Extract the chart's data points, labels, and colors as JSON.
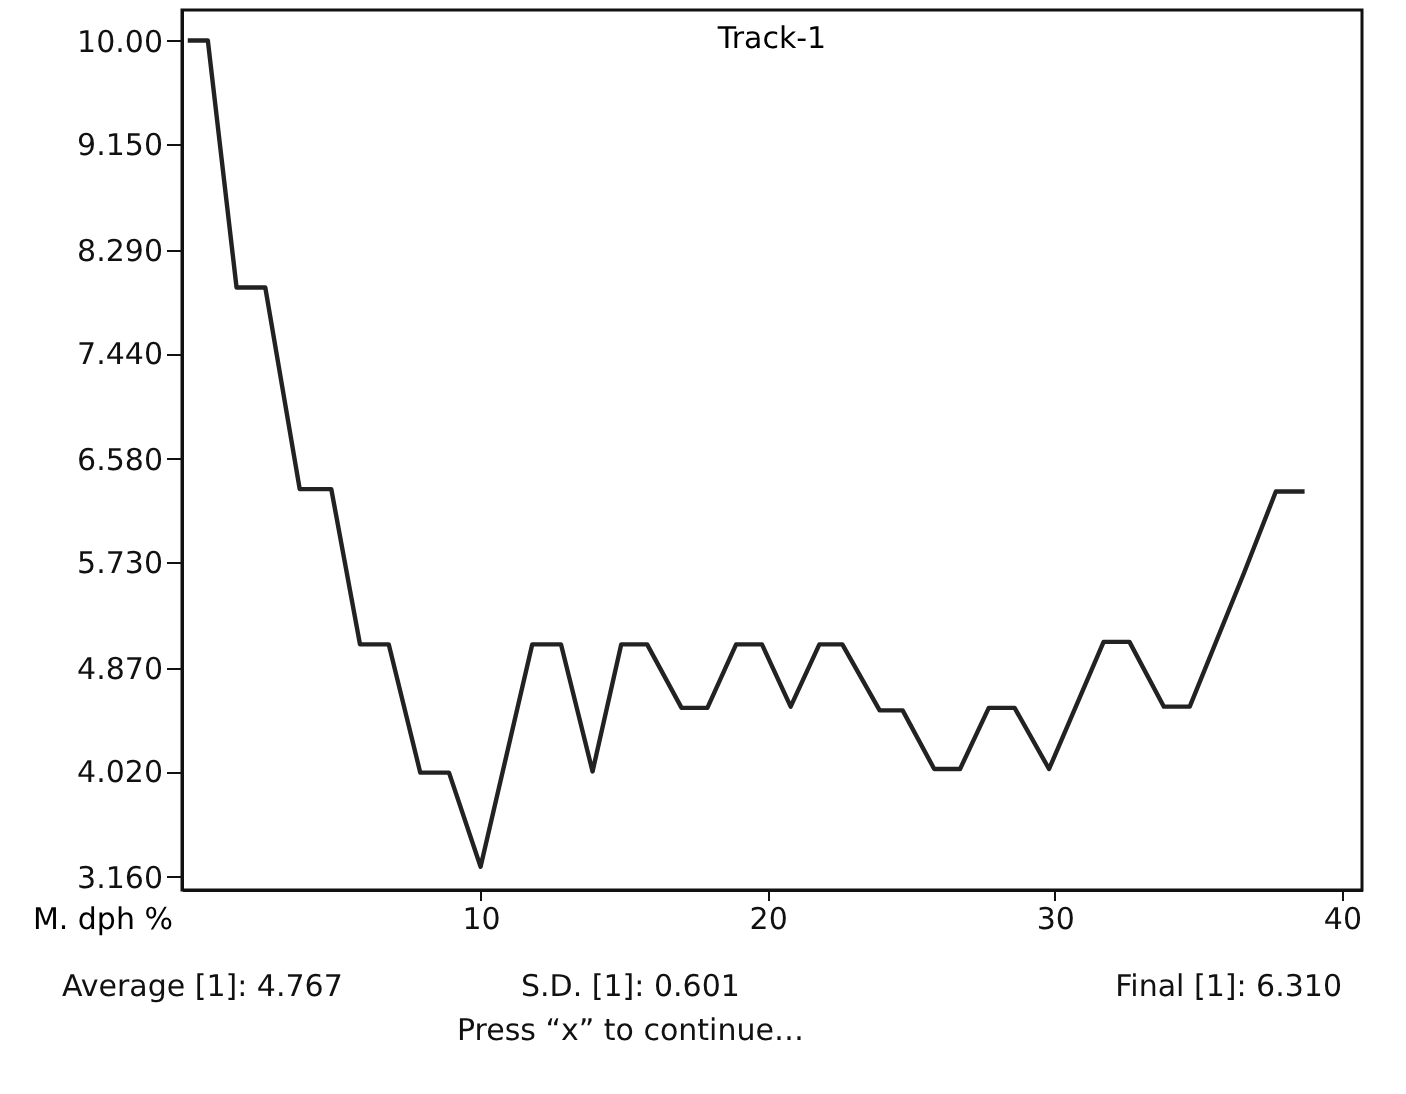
{
  "chart_data": {
    "type": "line",
    "title": "Track-1",
    "ylabel": "M. dph %",
    "x": [
      -0.2,
      0.5,
      1.5,
      2.5,
      3.7,
      4.8,
      5.8,
      6.8,
      7.9,
      8.9,
      10.0,
      11.8,
      12.8,
      13.9,
      14.9,
      15.8,
      17.0,
      17.9,
      18.9,
      19.8,
      20.8,
      21.8,
      22.6,
      23.9,
      24.7,
      25.8,
      26.7,
      27.7,
      28.6,
      29.8,
      31.7,
      32.6,
      33.8,
      34.7,
      36.6,
      37.7,
      38.7
    ],
    "series": [
      {
        "color": "#222222",
        "values": [
          10.0,
          10.0,
          7.98,
          7.98,
          6.33,
          6.33,
          5.06,
          5.06,
          4.01,
          4.01,
          3.24,
          5.06,
          5.06,
          4.02,
          5.06,
          5.06,
          4.54,
          4.54,
          5.06,
          5.06,
          4.55,
          5.06,
          5.06,
          4.52,
          4.52,
          4.04,
          4.04,
          4.54,
          4.54,
          4.04,
          5.08,
          5.08,
          4.55,
          4.55,
          5.65,
          6.31,
          6.31
        ]
      }
    ],
    "xlim": [
      -0.4,
      40.7
    ],
    "xticks": [
      10,
      20,
      30,
      40
    ],
    "ylim": [
      3.05,
      10.25
    ],
    "yticks": [
      {
        "value": 10.0,
        "label": "10.00"
      },
      {
        "value": 9.15,
        "label": "9.150"
      },
      {
        "value": 8.29,
        "label": "8.290"
      },
      {
        "value": 7.44,
        "label": "7.440"
      },
      {
        "value": 6.58,
        "label": "6.580"
      },
      {
        "value": 5.73,
        "label": "5.730"
      },
      {
        "value": 4.87,
        "label": "4.870"
      },
      {
        "value": 4.02,
        "label": "4.020"
      },
      {
        "value": 3.16,
        "label": "3.160"
      }
    ],
    "grid": false,
    "marker": "none",
    "line_style": "solid",
    "annotations": [
      "Average [1]: 4.767",
      "S.D. [1]: 0.601",
      "Final [1]: 6.310",
      "Press “x” to continue…"
    ]
  }
}
